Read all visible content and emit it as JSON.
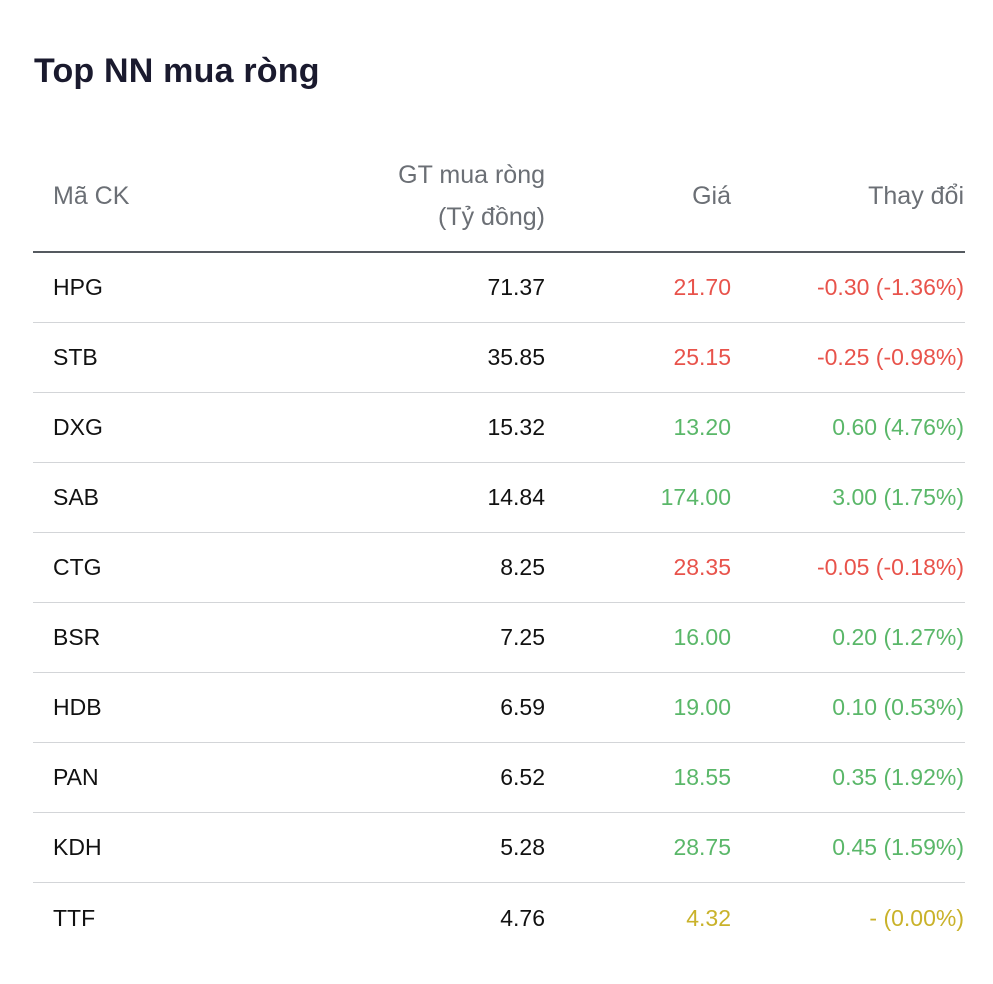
{
  "title": "Top NN mua ròng",
  "columns": {
    "code": "Mã CK",
    "value_line1": "GT mua ròng",
    "value_line2": "(Tỷ đồng)",
    "price": "Giá",
    "change": "Thay đổi"
  },
  "status_colors": {
    "up": "#5ab769",
    "down": "#e8534b",
    "ref": "#c9b22a"
  },
  "rows": [
    {
      "code": "HPG",
      "value": "71.37",
      "price": "21.70",
      "change": "-0.30 (-1.36%)",
      "status": "down"
    },
    {
      "code": "STB",
      "value": "35.85",
      "price": "25.15",
      "change": "-0.25 (-0.98%)",
      "status": "down"
    },
    {
      "code": "DXG",
      "value": "15.32",
      "price": "13.20",
      "change": "0.60 (4.76%)",
      "status": "up"
    },
    {
      "code": "SAB",
      "value": "14.84",
      "price": "174.00",
      "change": "3.00 (1.75%)",
      "status": "up"
    },
    {
      "code": "CTG",
      "value": "8.25",
      "price": "28.35",
      "change": "-0.05 (-0.18%)",
      "status": "down"
    },
    {
      "code": "BSR",
      "value": "7.25",
      "price": "16.00",
      "change": "0.20 (1.27%)",
      "status": "up"
    },
    {
      "code": "HDB",
      "value": "6.59",
      "price": "19.00",
      "change": "0.10 (0.53%)",
      "status": "up"
    },
    {
      "code": "PAN",
      "value": "6.52",
      "price": "18.55",
      "change": "0.35 (1.92%)",
      "status": "up"
    },
    {
      "code": "KDH",
      "value": "5.28",
      "price": "28.75",
      "change": "0.45 (1.59%)",
      "status": "up"
    },
    {
      "code": "TTF",
      "value": "4.76",
      "price": "4.32",
      "change": "- (0.00%)",
      "status": "ref"
    }
  ]
}
